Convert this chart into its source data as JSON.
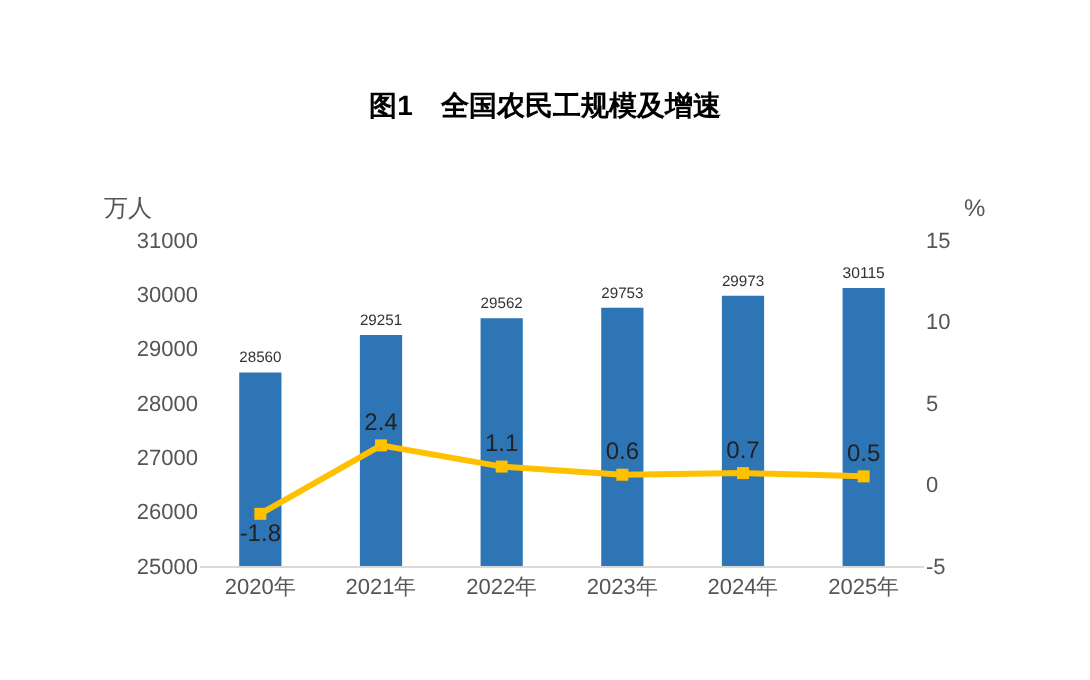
{
  "chart_data": {
    "type": "bar",
    "title": "图1　全国农民工规模及增速",
    "ylabel": "万人",
    "y2label": "%",
    "categories": [
      "2020年",
      "2021年",
      "2022年",
      "2023年",
      "2024年",
      "2025年"
    ],
    "series": [
      {
        "color": "#2e75b6",
        "values": [
          28560,
          29251,
          29562,
          29753,
          29973,
          30115
        ]
      },
      {
        "type": "line",
        "axis": "y2",
        "color": "#ffc000",
        "marker": "square",
        "values": [
          -1.8,
          2.4,
          1.1,
          0.6,
          0.7,
          0.5
        ]
      }
    ],
    "ylim": [
      25000,
      31000
    ],
    "yticks": [
      25000,
      26000,
      27000,
      28000,
      29000,
      30000,
      31000
    ],
    "y2lim": [
      -5,
      15
    ],
    "y2ticks": [
      -5,
      0,
      5,
      10,
      15
    ],
    "data_labels": true,
    "grid": false
  }
}
